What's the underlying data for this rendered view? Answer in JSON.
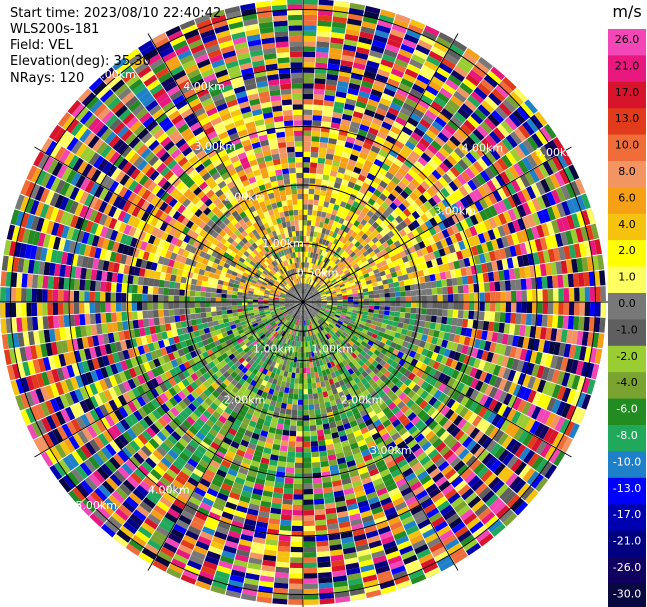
{
  "header": {
    "start_time": "Start time: 2023/08/10 22:40:42",
    "instrument": "WLS200s-181",
    "field": "Field: VEL",
    "elevation": "Elevation(deg): 35.30",
    "nrays": "NRays: 120"
  },
  "chart_data": {
    "type": "heatmap",
    "projection": "polar-ppi",
    "field": "VEL",
    "unit": "m/s",
    "n_rays": 120,
    "elevation_deg": 35.3,
    "range_rings_km": [
      0.5,
      1.0,
      2.0,
      3.0,
      4.0,
      5.0
    ],
    "range_ring_labels": [
      "0.50km",
      "1.00km",
      "1.00km",
      "2.00km",
      "2.00km",
      "3.00km",
      "3.00km",
      "4.00km",
      "4.00km",
      "5.00km",
      "5.00km",
      "1.00km",
      "2.00km",
      "3.00km",
      "4.00km",
      "5.00km"
    ],
    "grid_lines": true,
    "colorbar": {
      "unit": "m/s",
      "ticks": [
        "26.0",
        "21.0",
        "17.0",
        "13.0",
        "10.0",
        "8.0",
        "6.0",
        "4.0",
        "2.0",
        "1.0",
        "0.0",
        "-1.0",
        "-2.0",
        "-4.0",
        "-6.0",
        "-8.0",
        "-10.0",
        "-13.0",
        "-17.0",
        "-21.0",
        "-26.0",
        "-30.0"
      ],
      "colors": [
        "#f347b8",
        "#e8187f",
        "#d8142d",
        "#e23b1b",
        "#f06d3a",
        "#f29563",
        "#f6a016",
        "#f5c20d",
        "#ffff00",
        "#ffff62",
        "#787878",
        "#5f5f5f",
        "#9acd32",
        "#7aa332",
        "#228b22",
        "#20a95a",
        "#1e80c8",
        "#0000ff",
        "#0000b0",
        "#000080",
        "#100060",
        "#080840"
      ],
      "light_text_from": -6.0
    },
    "pattern_description": "Near-range receding (positive) velocities to the north, approaching (negative) velocities to the south; noisy far-range gates."
  }
}
